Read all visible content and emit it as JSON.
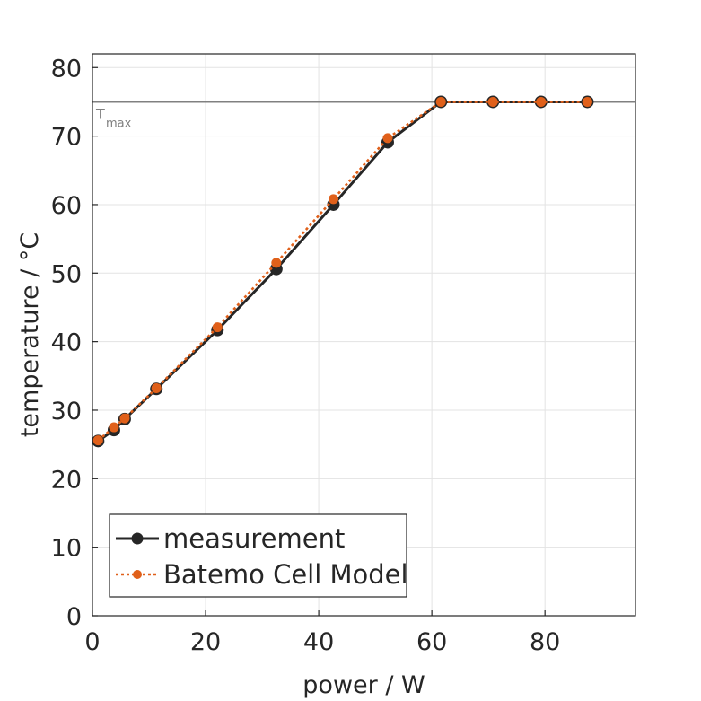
{
  "chart_data": {
    "type": "line",
    "xlabel": "power / W",
    "ylabel": "temperature / °C",
    "xlim": [
      0,
      96
    ],
    "ylim": [
      0,
      82
    ],
    "xticks": [
      0,
      20,
      40,
      60,
      80
    ],
    "yticks": [
      0,
      10,
      20,
      30,
      40,
      50,
      60,
      70,
      80
    ],
    "grid": true,
    "legend_position": "bottom-left",
    "reference_line": {
      "y": 75,
      "label": "T",
      "label_sub": "max",
      "color": "#808080"
    },
    "series": [
      {
        "name": "measurement",
        "color": "#262626",
        "line_style": "solid",
        "x": [
          1,
          3.8,
          5.7,
          11.3,
          22.1,
          32.5,
          42.6,
          52.2,
          61.6,
          70.8,
          79.3,
          87.5
        ],
        "y": [
          25.5,
          27.1,
          28.7,
          33.1,
          41.7,
          50.6,
          60.0,
          69.1,
          75,
          75,
          75,
          75
        ]
      },
      {
        "name": "Batemo Cell Model",
        "color": "#e0601a",
        "line_style": "dotted",
        "x": [
          1,
          3.8,
          5.7,
          11.3,
          22.1,
          32.5,
          42.6,
          52.2,
          61.6,
          70.8,
          79.3,
          87.5
        ],
        "y": [
          25.6,
          27.5,
          28.8,
          33.2,
          42.1,
          51.5,
          60.8,
          69.7,
          75,
          75,
          75,
          75
        ]
      }
    ]
  }
}
